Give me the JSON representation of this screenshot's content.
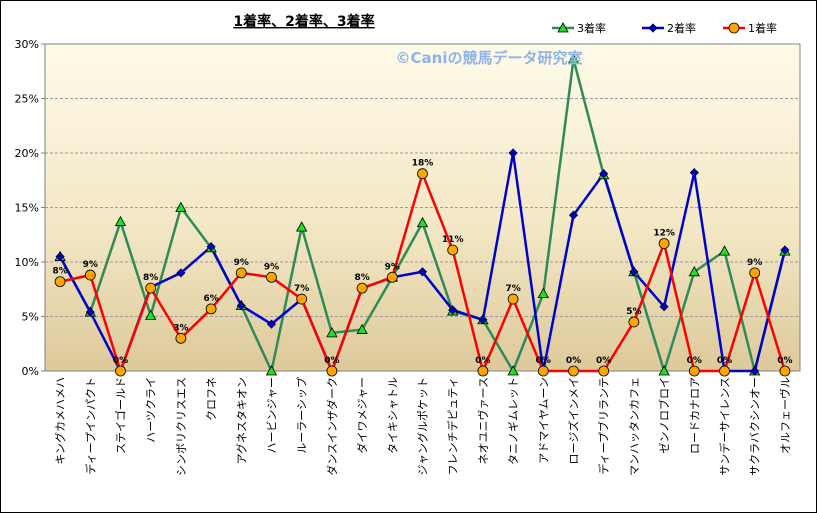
{
  "chart_data": {
    "type": "line",
    "title": "1着率、2着率、3着率",
    "watermark": "©Caniの競馬データ研究室",
    "categories": [
      "キングカメハメハ",
      "ディープインパクト",
      "ステイゴールド",
      "ハーツクライ",
      "シンボリクリスエス",
      "クロフネ",
      "アグネスタキオン",
      "ハービンジャー",
      "ルーラーシップ",
      "ダンスインザダーク",
      "ダイワメジャー",
      "タイキシャトル",
      "ジャングルポケット",
      "フレンチデピュティ",
      "ネオユニヴァース",
      "タニノギムレット",
      "アドマイヤムーン",
      "ロージズインメイ",
      "ディープブリランテ",
      "マンハッタンカフェ",
      "ゼンノロブロイ",
      "ロードカナロア",
      "サンデーサイレンス",
      "サクラバクシンオー",
      "オルフェーヴル"
    ],
    "y_ticks": [
      "0%",
      "5%",
      "10%",
      "15%",
      "20%",
      "25%",
      "30%"
    ],
    "ylim": [
      0,
      30
    ],
    "legend_position": "top-right",
    "series": [
      {
        "name": "3着率",
        "color": "#2e8b57",
        "marker": "triangle",
        "marker_color": "#22dd22",
        "values": [
          10.5,
          5.4,
          13.7,
          5.1,
          15.0,
          11.3,
          6.0,
          0,
          13.2,
          3.5,
          3.8,
          8.6,
          13.6,
          5.5,
          4.7,
          0,
          7.1,
          28.6,
          18.0,
          9.1,
          0,
          9.1,
          11.0,
          0,
          11.0
        ]
      },
      {
        "name": "2着率",
        "color": "#0000cc",
        "marker": "diamond",
        "marker_color": "#0000cc",
        "values": [
          10.5,
          5.4,
          0,
          7.7,
          9.0,
          11.4,
          6.0,
          4.3,
          6.6,
          0,
          7.6,
          8.6,
          9.1,
          5.6,
          4.7,
          20.0,
          0,
          14.3,
          18.1,
          9.1,
          5.9,
          18.2,
          0,
          0,
          11.1
        ]
      },
      {
        "name": "1着率",
        "color": "#ff0000",
        "marker": "circle",
        "marker_color": "#ffa500",
        "values": [
          8.2,
          8.8,
          0,
          7.6,
          3.0,
          5.7,
          9.0,
          8.6,
          6.6,
          0,
          7.6,
          8.6,
          18.1,
          11.1,
          0,
          6.6,
          0,
          0,
          0,
          4.5,
          11.7,
          0,
          0,
          9.0,
          0
        ],
        "labels": [
          "8%",
          "9%",
          "0%",
          "8%",
          "3%",
          "6%",
          "9%",
          "9%",
          "7%",
          "0%",
          "8%",
          "9%",
          "18%",
          "11%",
          "0%",
          "7%",
          "0%",
          "0%",
          "0%",
          "5%",
          "12%",
          "0%",
          "0%",
          "9%",
          "0%"
        ]
      }
    ]
  }
}
